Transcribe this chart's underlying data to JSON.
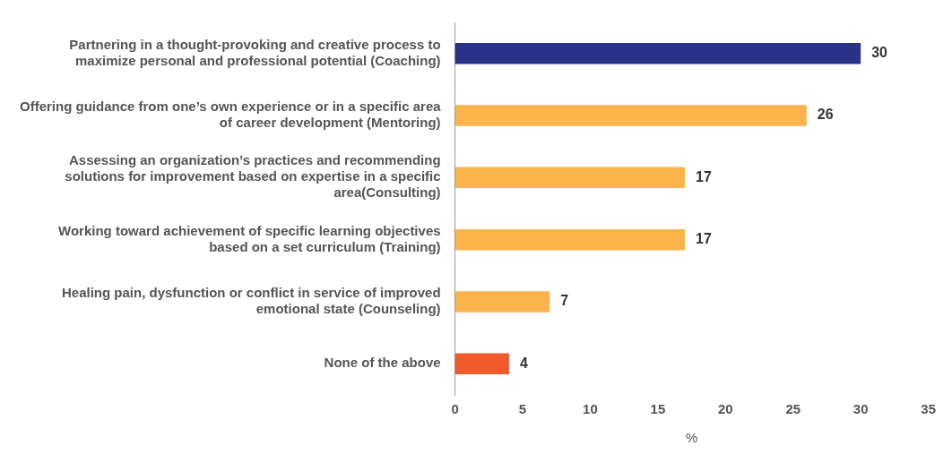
{
  "chart_data": {
    "type": "bar",
    "orientation": "horizontal",
    "xlabel": "%",
    "categories": [
      "Partnering in a thought-provoking and creative process to maximize personal and professional potential (Coaching)",
      "Offering guidance from one’s own experience or in a specific area of career development (Mentoring)",
      "Assessing an organization’s practices and recommending solutions for improvement based on expertise in a specific area(Consulting)",
      "Working toward achievement of specific learning objectives based on a set curriculum (Training)",
      "Healing pain, dysfunction or conflict in service of improved emotional state (Counseling)",
      "None of the above"
    ],
    "values": [
      30,
      26,
      17,
      17,
      7,
      4
    ],
    "colors": [
      "#2b3088",
      "#fbb34c",
      "#fbb34c",
      "#fbb34c",
      "#fbb34c",
      "#f15a2b"
    ],
    "xlim": [
      0,
      35
    ],
    "xticks": [
      0,
      5,
      10,
      15,
      20,
      25,
      30,
      35
    ],
    "data_labels": true,
    "grid": false,
    "legend": false
  }
}
